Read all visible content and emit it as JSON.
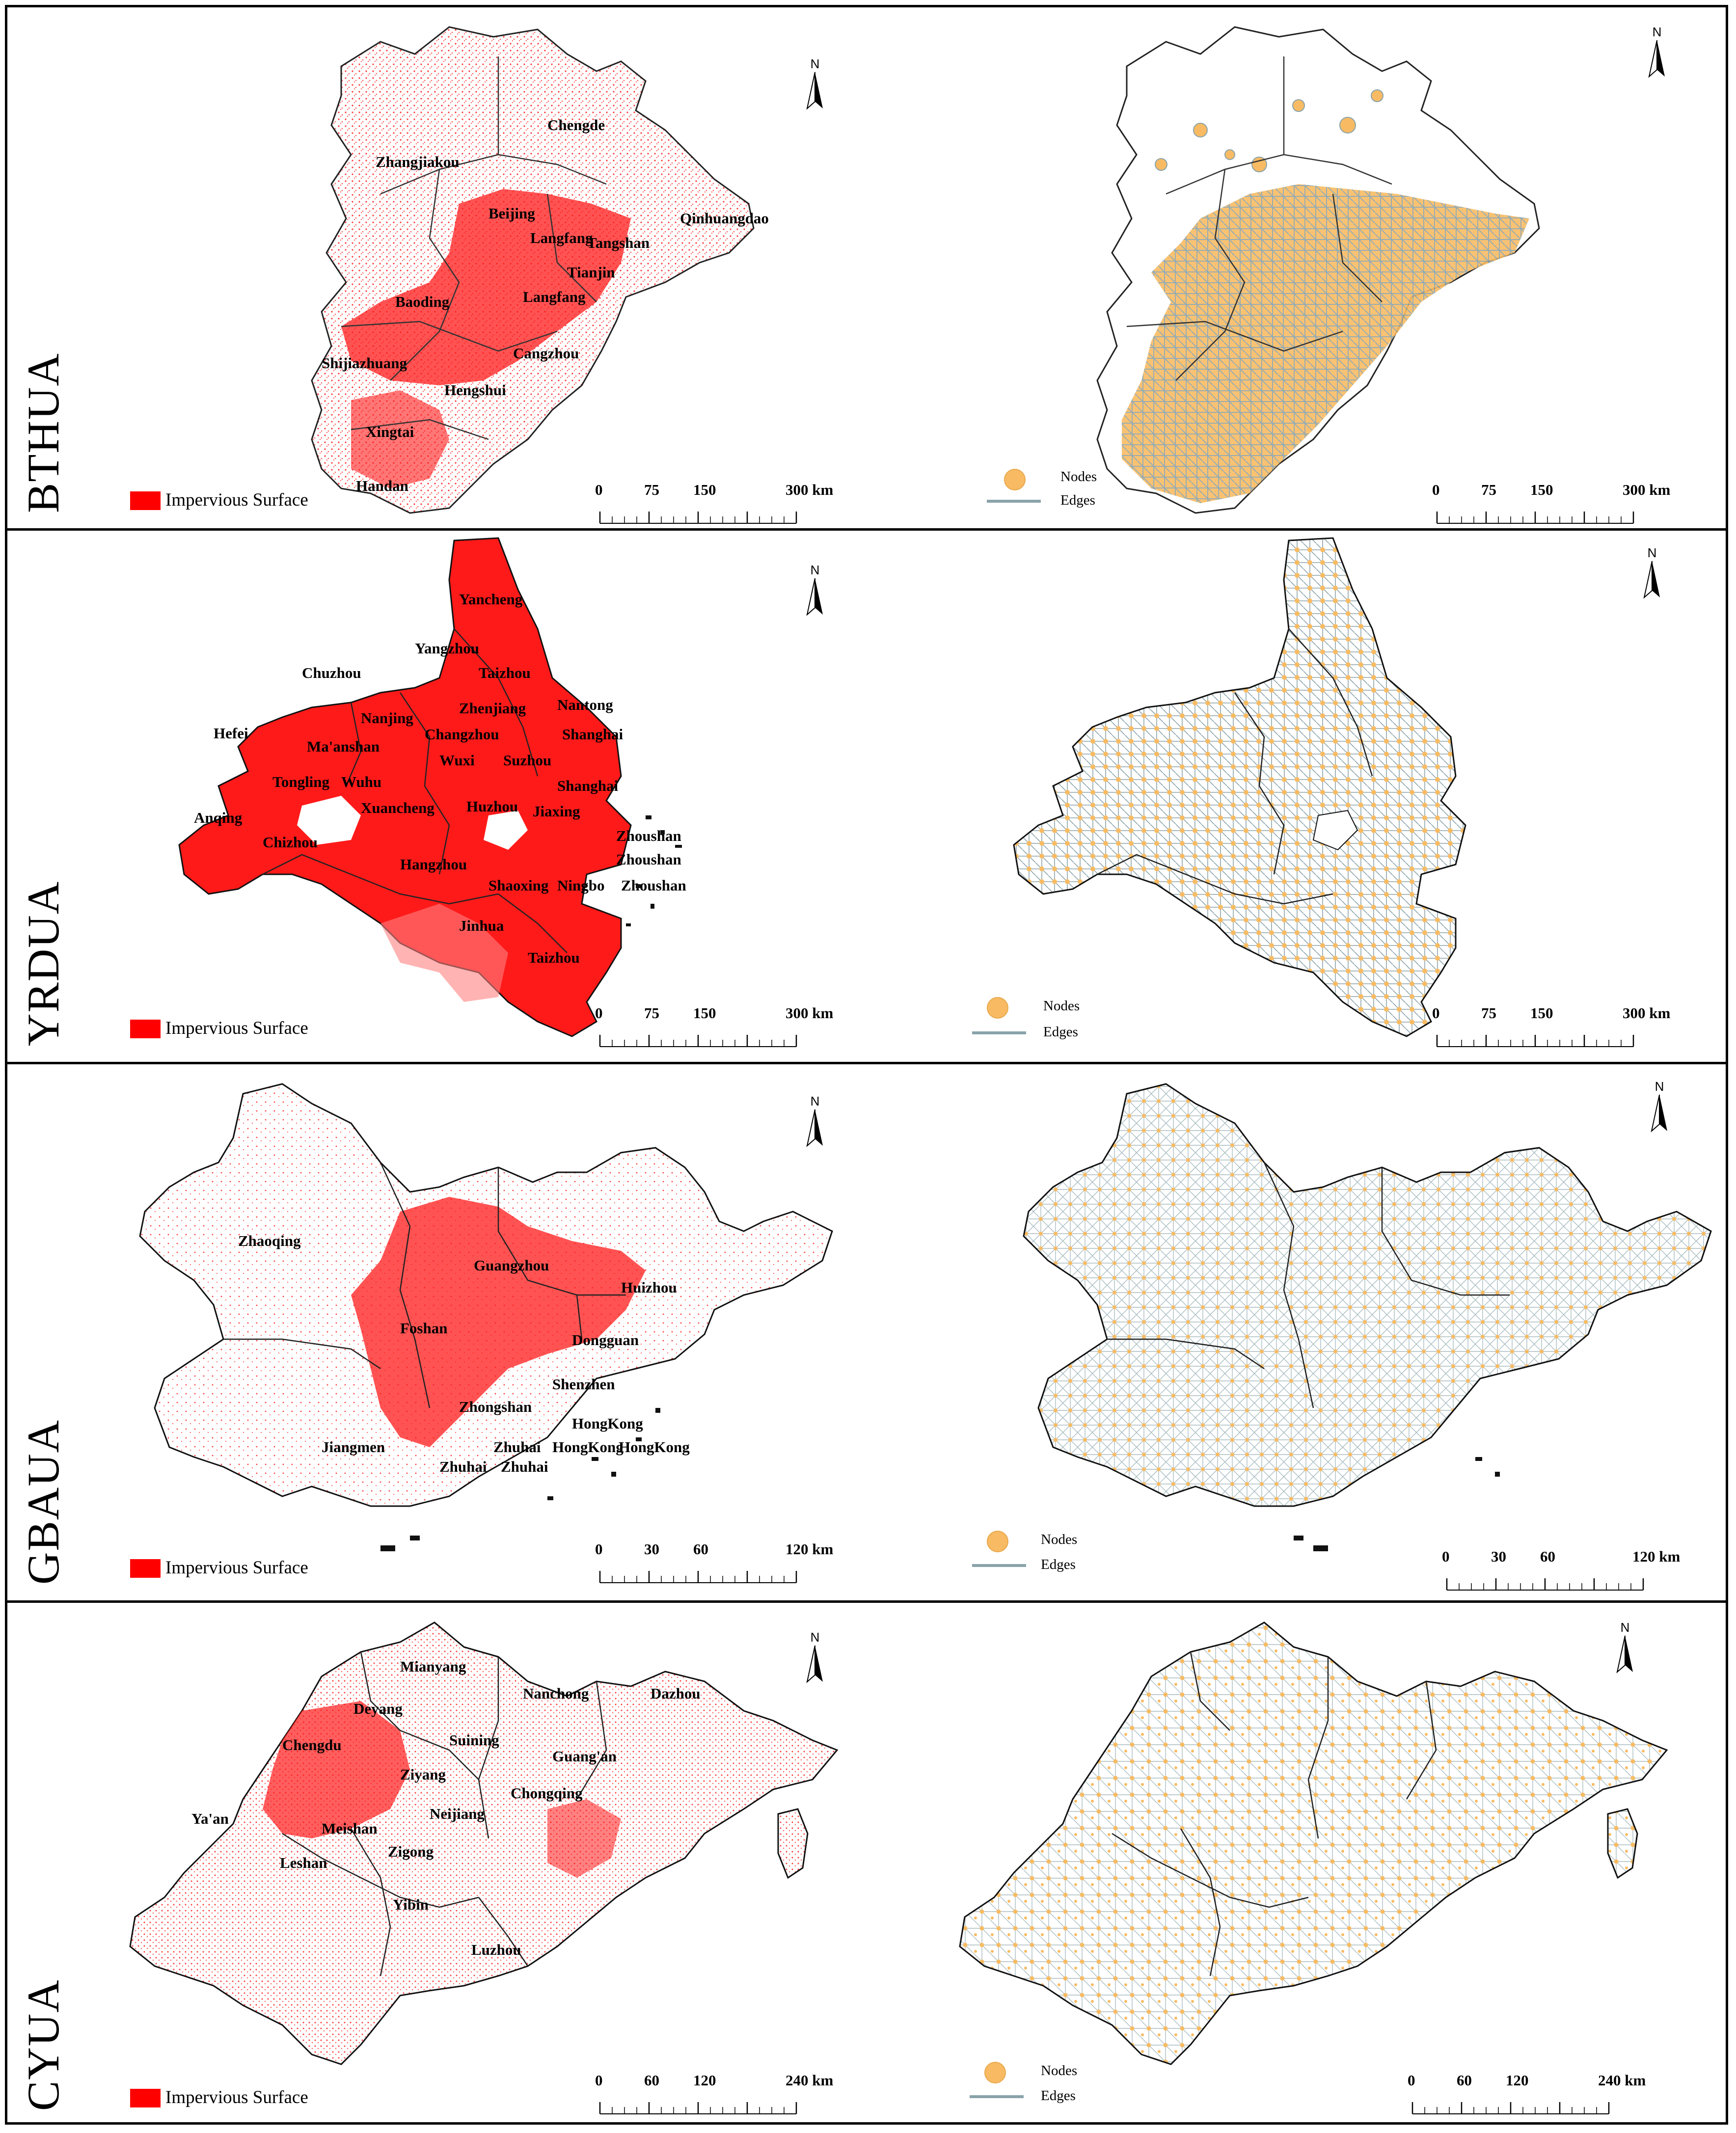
{
  "figure": {
    "panels": [
      {
        "id": "bthua",
        "region_label": "BTHUA",
        "impervious_legend": "Impervious Surface",
        "nodes_legend": "Nodes",
        "edges_legend": "Edges",
        "scale_left": [
          "0",
          "75",
          "150",
          "300 km"
        ],
        "scale_right": [
          "0",
          "75",
          "150",
          "300 km"
        ],
        "cities": [
          "Chengde",
          "Zhangjiakou",
          "Beijing",
          "Qinhuangdao",
          "Langfang",
          "Tangshan",
          "Tianjin",
          "Baoding",
          "Langfang",
          "Shijiazhuang",
          "Cangzhou",
          "Hengshui",
          "Xingtai",
          "Handan"
        ]
      },
      {
        "id": "yrdua",
        "region_label": "YRDUA",
        "impervious_legend": "Impervious Surface",
        "nodes_legend": "Nodes",
        "edges_legend": "Edges",
        "scale_left": [
          "0",
          "75",
          "150",
          "300 km"
        ],
        "scale_right": [
          "0",
          "75",
          "150",
          "300 km"
        ],
        "cities": [
          "Yancheng",
          "Yangzhou",
          "Chuzhou",
          "Taizhou",
          "Zhenjiang",
          "Nantong",
          "Nanjing",
          "Hefei",
          "Changzhou",
          "Shanghai",
          "Ma'anshan",
          "Wuxi",
          "Suzhou",
          "Tongling",
          "Wuhu",
          "Shanghai",
          "Anqing",
          "Xuancheng",
          "Huzhou",
          "Jiaxing",
          "Chizhou",
          "Zhoushan",
          "Hangzhou",
          "Zhoushan",
          "Shaoxing",
          "Ningbo",
          "Zhoushan",
          "Jinhua",
          "Taizhou"
        ]
      },
      {
        "id": "gbaua",
        "region_label": "GBAUA",
        "impervious_legend": "Impervious Surface",
        "nodes_legend": "Nodes",
        "edges_legend": "Edges",
        "scale_left": [
          "0",
          "30",
          "60",
          "120 km"
        ],
        "scale_right": [
          "0",
          "30",
          "60",
          "120 km"
        ],
        "cities": [
          "Zhaoqing",
          "Guangzhou",
          "Huizhou",
          "Foshan",
          "Dongguan",
          "Shenzhen",
          "Zhongshan",
          "HongKong",
          "Jiangmen",
          "Zhuhai",
          "HongKong",
          "HongKong",
          "Zhuhai",
          "Zhuhai"
        ]
      },
      {
        "id": "cyua",
        "region_label": "CYUA",
        "impervious_legend": "Impervious Surface",
        "nodes_legend": "Nodes",
        "edges_legend": "Edges",
        "scale_left": [
          "0",
          "60",
          "120",
          "240 km"
        ],
        "scale_right": [
          "0",
          "60",
          "120",
          "240 km"
        ],
        "cities": [
          "Mianyang",
          "Nanchong",
          "Dazhou",
          "Deyang",
          "Chengdu",
          "Suining",
          "Guang'an",
          "Ziyang",
          "Chongqing",
          "Ya'an",
          "Meishan",
          "Neijiang",
          "Zigong",
          "Leshan",
          "Yibin",
          "Luzhou"
        ]
      }
    ],
    "north_letter": "N",
    "colors": {
      "impervious": "#ff0000",
      "nodes": "#f8bb63",
      "edges": "#8aa3aa",
      "border": "#000000"
    }
  }
}
